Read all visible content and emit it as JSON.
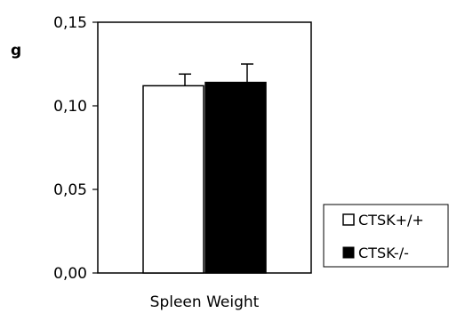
{
  "chart_data": {
    "type": "bar",
    "title": "",
    "xlabel": "",
    "ylabel": "g",
    "categories": [
      "Spleen Weight"
    ],
    "yticks": [
      "0,00",
      "0,05",
      "0,10",
      "0,15"
    ],
    "ylim": [
      0,
      0.15
    ],
    "grid": false,
    "legend_position": "right",
    "series": [
      {
        "name": "CTSK+/+",
        "values": [
          0.112
        ],
        "errors": [
          0.007
        ],
        "color": "#ffffff"
      },
      {
        "name": "CTSK-/-",
        "values": [
          0.114
        ],
        "errors": [
          0.011
        ],
        "color": "#000000"
      }
    ]
  }
}
